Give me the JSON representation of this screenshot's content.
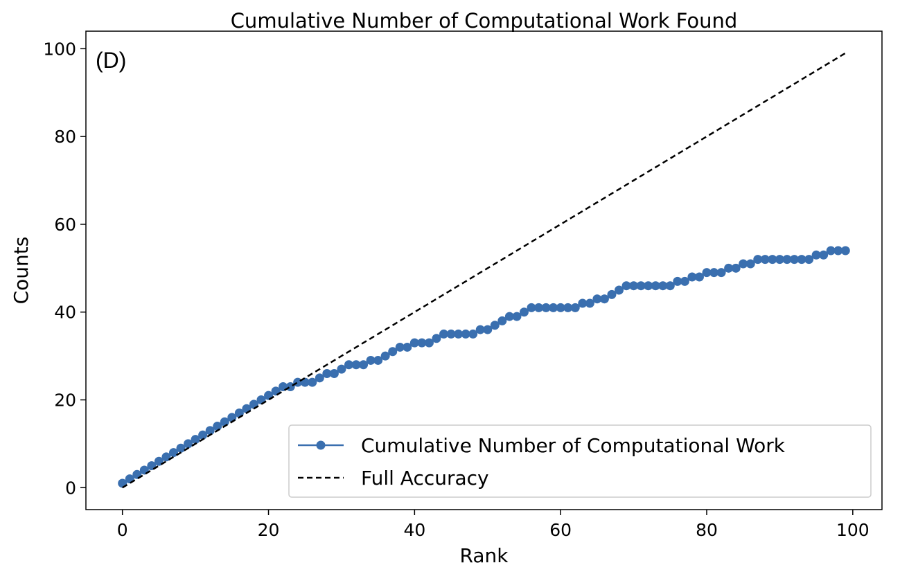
{
  "chart_data": {
    "type": "line",
    "title": "Cumulative Number of Computational Work Found",
    "panel_label": "(D)",
    "xlabel": "Rank",
    "ylabel": "Counts",
    "xlim": [
      -5,
      104
    ],
    "ylim": [
      -5,
      104
    ],
    "xticks": [
      0,
      20,
      40,
      60,
      80,
      100
    ],
    "yticks": [
      0,
      20,
      40,
      60,
      80,
      100
    ],
    "grid": false,
    "legend_position": "bottom-right",
    "series": [
      {
        "name": "Cumulative Number of Computational Work",
        "style": "solid-marker",
        "color": "#3a6faf",
        "x": [
          0,
          1,
          2,
          3,
          4,
          5,
          6,
          7,
          8,
          9,
          10,
          11,
          12,
          13,
          14,
          15,
          16,
          17,
          18,
          19,
          20,
          21,
          22,
          23,
          24,
          25,
          26,
          27,
          28,
          29,
          30,
          31,
          32,
          33,
          34,
          35,
          36,
          37,
          38,
          39,
          40,
          41,
          42,
          43,
          44,
          45,
          46,
          47,
          48,
          49,
          50,
          51,
          52,
          53,
          54,
          55,
          56,
          57,
          58,
          59,
          60,
          61,
          62,
          63,
          64,
          65,
          66,
          67,
          68,
          69,
          70,
          71,
          72,
          73,
          74,
          75,
          76,
          77,
          78,
          79,
          80,
          81,
          82,
          83,
          84,
          85,
          86,
          87,
          88,
          89,
          90,
          91,
          92,
          93,
          94,
          95,
          96,
          97,
          98,
          99
        ],
        "y": [
          1,
          2,
          3,
          4,
          5,
          6,
          7,
          8,
          9,
          10,
          11,
          12,
          13,
          14,
          15,
          16,
          17,
          18,
          19,
          20,
          21,
          22,
          23,
          23,
          24,
          24,
          24,
          25,
          26,
          26,
          27,
          28,
          28,
          28,
          29,
          29,
          30,
          31,
          32,
          32,
          33,
          33,
          33,
          34,
          35,
          35,
          35,
          35,
          35,
          36,
          36,
          37,
          38,
          39,
          39,
          40,
          41,
          41,
          41,
          41,
          41,
          41,
          41,
          42,
          42,
          43,
          43,
          44,
          45,
          46,
          46,
          46,
          46,
          46,
          46,
          46,
          47,
          47,
          48,
          48,
          49,
          49,
          49,
          50,
          50,
          51,
          51,
          52,
          52,
          52,
          52,
          52,
          52,
          52,
          52,
          53,
          53,
          54,
          54,
          54
        ]
      },
      {
        "name": "Full Accuracy",
        "style": "dashed",
        "color": "#000000",
        "x": [
          0,
          99
        ],
        "y": [
          0,
          99
        ]
      }
    ]
  }
}
